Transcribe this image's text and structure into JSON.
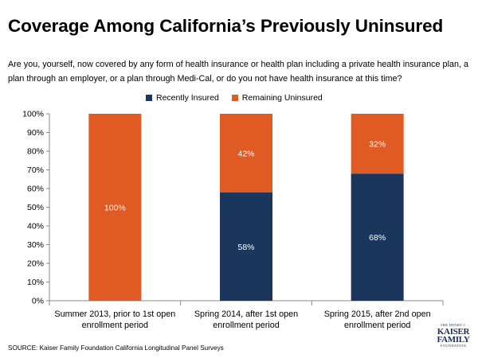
{
  "header": {
    "title": "Coverage Among California’s Previously Uninsured",
    "question": "Are you, yourself, now covered by any form of health insurance or health plan including a private health insurance plan, a plan through an employer, or a plan through Medi-Cal, or do you not have health insurance at this time?"
  },
  "footer": {
    "source": "SOURCE: Kaiser Family Foundation California Longitudinal Panel Surveys",
    "logo_top": "THE HENRY J.",
    "logo_mid1": "KAISER",
    "logo_mid2": "FAMILY",
    "logo_bottom": "FOUNDATION"
  },
  "colors": {
    "insured": "#1b365d",
    "uninsured": "#e05a23"
  },
  "chart_data": {
    "type": "bar",
    "stacked": true,
    "title": "Coverage Among California’s Previously Uninsured",
    "categories": [
      [
        "Summer 2013, prior to 1st open",
        "enrollment period"
      ],
      [
        "Spring 2014, after 1st open",
        "enrollment period"
      ],
      [
        "Spring 2015, after 2nd open",
        "enrollment period"
      ]
    ],
    "series": [
      {
        "name": "Recently Insured",
        "color": "#1b365d",
        "values": [
          0,
          58,
          68
        ],
        "labels": [
          "",
          "58%",
          "68%"
        ]
      },
      {
        "name": "Remaining Uninsured",
        "color": "#e05a23",
        "values": [
          100,
          42,
          32
        ],
        "labels": [
          "100%",
          "42%",
          "32%"
        ]
      }
    ],
    "ylim": [
      0,
      100
    ],
    "yticks": [
      0,
      10,
      20,
      30,
      40,
      50,
      60,
      70,
      80,
      90,
      100
    ],
    "ytick_labels": [
      "0%",
      "10%",
      "20%",
      "30%",
      "40%",
      "50%",
      "60%",
      "70%",
      "80%",
      "90%",
      "100%"
    ],
    "xlabel": "",
    "ylabel": "",
    "legend_position": "top"
  }
}
